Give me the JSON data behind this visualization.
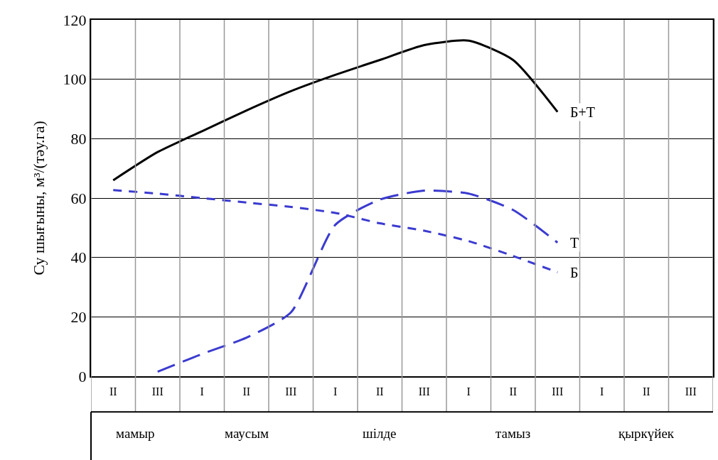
{
  "chart_data": {
    "type": "line",
    "ylabel": "Су шығыны, м³/(тәу.га)",
    "categories": [
      "II",
      "III",
      "I",
      "II",
      "III",
      "I",
      "II",
      "III",
      "I",
      "II",
      "III",
      "I",
      "II",
      "III"
    ],
    "annotations": [
      "мамыр",
      "маусым",
      "шілде",
      "тамыз",
      "қыркүйек"
    ],
    "ylim": [
      0,
      120
    ],
    "yticks": [
      0,
      20,
      40,
      60,
      80,
      100,
      120
    ],
    "grid": true,
    "legend": false,
    "marker": "none",
    "series": [
      {
        "name": "Б+Т",
        "color": "#000000",
        "line_style": "solid",
        "values": [
          66,
          75.5,
          82.5,
          89.5,
          96,
          101.5,
          106.5,
          111.5,
          113,
          106.5,
          89,
          null,
          null,
          null
        ]
      },
      {
        "name": "Т",
        "color": "#3b3bd0",
        "line_style": "dashed",
        "values": [
          null,
          1.5,
          7.5,
          13,
          21.5,
          51,
          59.5,
          62.5,
          61.5,
          56,
          45,
          null,
          null,
          null
        ]
      },
      {
        "name": "Б",
        "color": "#3b3bd0",
        "line_style": "dashed",
        "values": [
          62.7,
          61.5,
          60,
          58.5,
          57,
          55,
          51.5,
          49,
          45.5,
          40.5,
          35,
          null,
          null,
          null
        ]
      }
    ]
  }
}
